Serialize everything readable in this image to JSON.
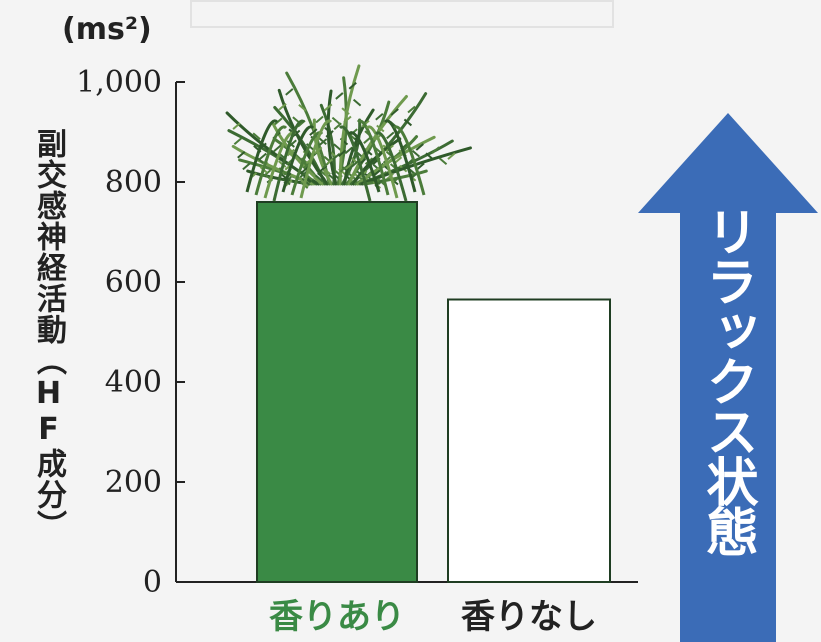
{
  "colors": {
    "bar_with_scent": "#3a8a45",
    "bar_without_scent": "#ffffff",
    "arrow": "#3b6cb7",
    "label_with_scent": "#3a8a45",
    "label_without_scent": "#222222"
  },
  "arrow": {
    "text": "リラックス状態",
    "direction": "up"
  },
  "decoration": {
    "image": "evergreen-sprig-over-bar"
  },
  "chart_data": {
    "type": "bar",
    "title": "",
    "unit_label": "(ms²)",
    "ylabel": "副交感神経活動（HF成分）",
    "xlabel": "",
    "ylim": [
      0,
      1000
    ],
    "yticks": [
      {
        "value": 0,
        "label": "0"
      },
      {
        "value": 200,
        "label": "200"
      },
      {
        "value": 400,
        "label": "400"
      },
      {
        "value": 600,
        "label": "600"
      },
      {
        "value": 800,
        "label": "800"
      },
      {
        "value": 1000,
        "label": "1,000"
      }
    ],
    "categories": [
      "香りあり",
      "香りなし"
    ],
    "values": [
      760,
      565
    ],
    "grid": false,
    "legend": "none"
  }
}
